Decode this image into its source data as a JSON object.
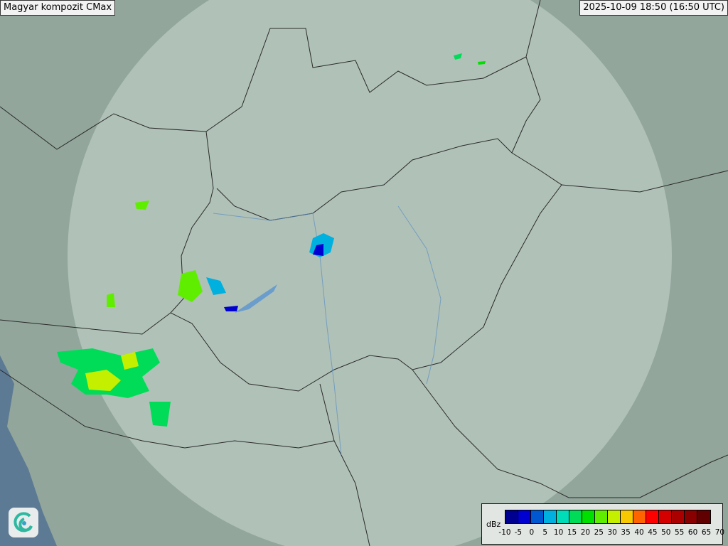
{
  "title": "Magyar kompozit  CMax",
  "timestamp": "2025-10-09 18:50 (16:50 UTC)",
  "legend": {
    "unit": "dBz",
    "ticks": [
      "-10",
      "-5",
      "0",
      "5",
      "10",
      "15",
      "20",
      "25",
      "30",
      "35",
      "40",
      "45",
      "50",
      "55",
      "60",
      "65",
      "70"
    ],
    "colors": [
      "#000090",
      "#0000d0",
      "#0058d0",
      "#00b0de",
      "#00dcb8",
      "#00dc58",
      "#00e000",
      "#60ee00",
      "#c4f000",
      "#f8c800",
      "#ff6400",
      "#ff0000",
      "#d40000",
      "#aa0000",
      "#880000",
      "#600000"
    ]
  },
  "logo_icon": "swirl-logo-icon"
}
